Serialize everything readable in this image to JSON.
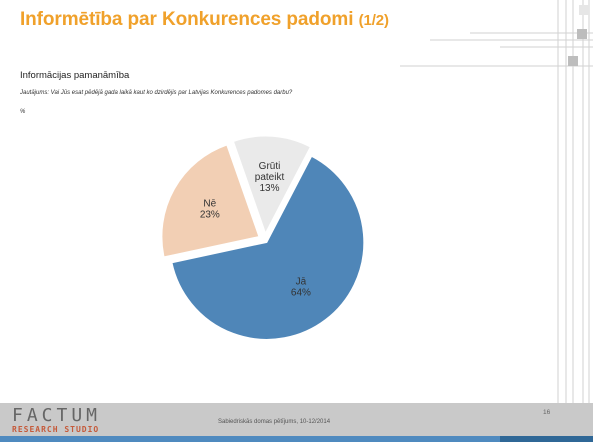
{
  "header": {
    "title": "Informētība par Konkurences padomi",
    "title_part": "(1/2)"
  },
  "content": {
    "section_title": "Informācijas pamanāmība",
    "question": "Jautājums: Vai Jūs esat pēdējā gada laikā kaut ko dzirdējis par Latvijas Konkurences padomes darbu?",
    "unit": "%"
  },
  "chart_data": {
    "type": "pie",
    "categories": [
      "Jā",
      "Nē",
      "Grūti pateikt"
    ],
    "values": [
      64,
      23,
      13
    ],
    "value_labels": [
      "64%",
      "23%",
      "13%"
    ],
    "colors": [
      "#4f86b8",
      "#f2cfb4",
      "#eaeaea"
    ],
    "exploded": true
  },
  "footer": {
    "logo_main": "FACTUM",
    "logo_sub": "RESEARCH STUDIO",
    "text": "Sabiedriskās domas pētījums, 10-12/2014",
    "page_number": "16"
  },
  "colors": {
    "title": "#f0a12b",
    "footer_bg": "#c9c9c9",
    "footer_accent": "#4f8abf"
  }
}
